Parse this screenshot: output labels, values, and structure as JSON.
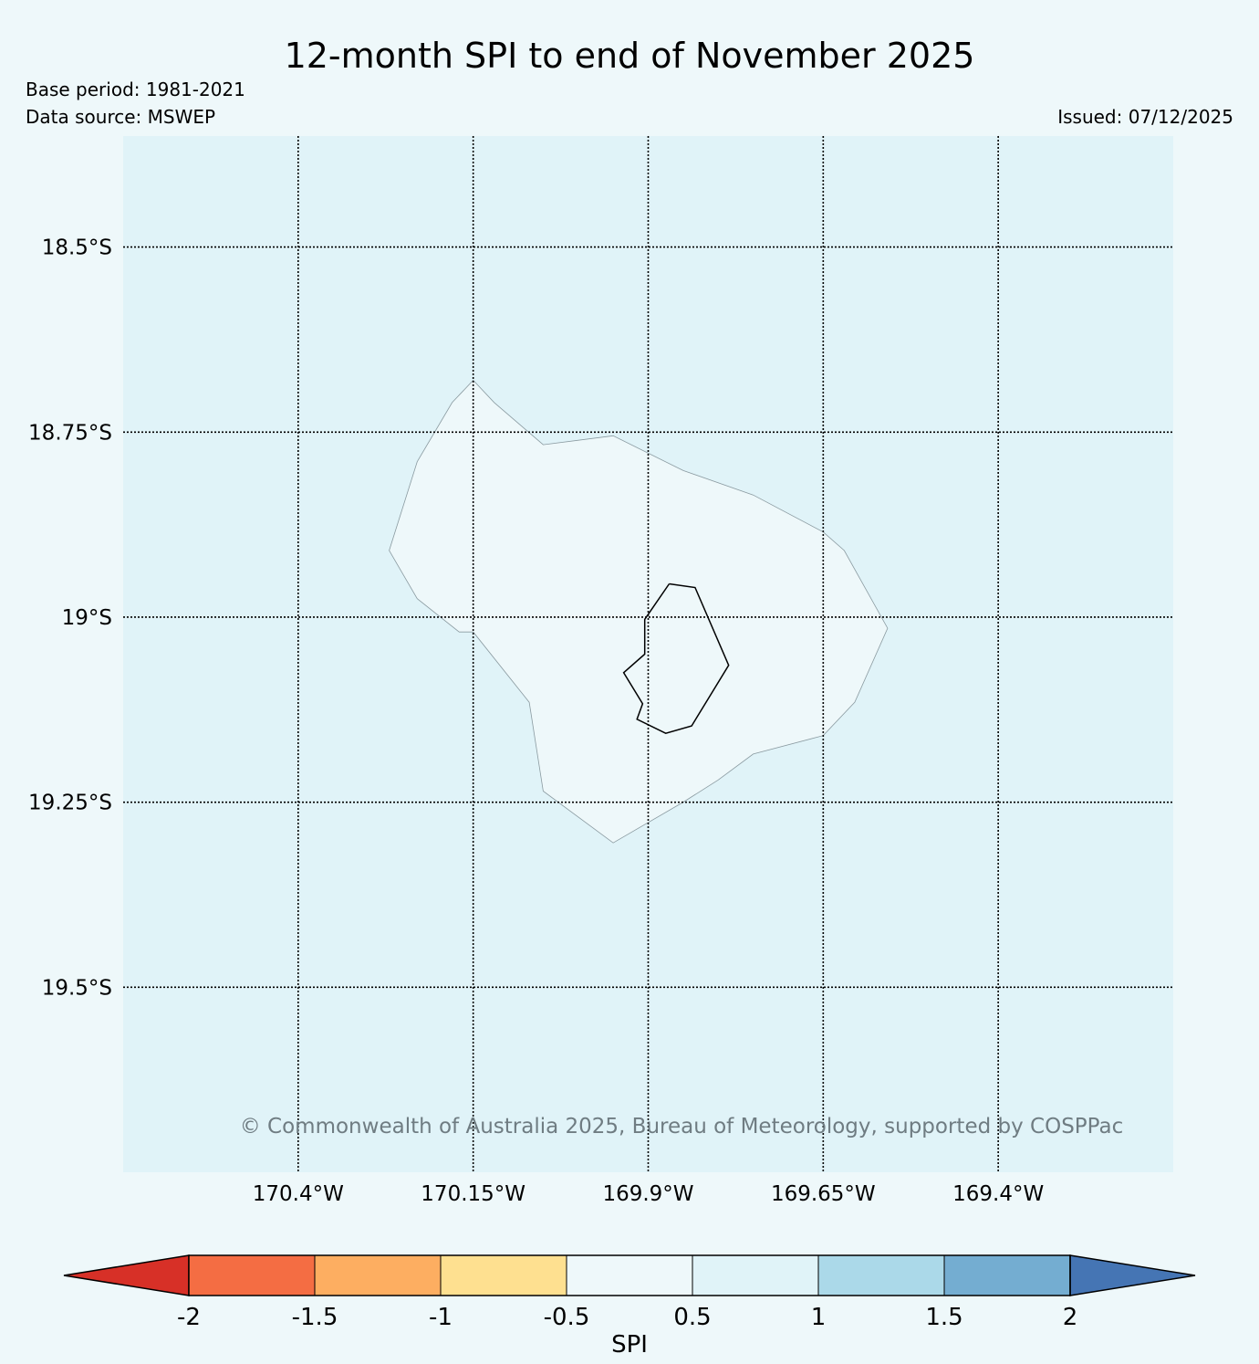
{
  "header": {
    "title": "12-month SPI to end of November 2025",
    "base_period": "Base period: 1981-2021",
    "data_source": "Data source: MSWEP",
    "issued": "Issued: 07/12/2025"
  },
  "map": {
    "extent": {
      "lon": [
        -170.65,
        -169.15
      ],
      "lat": [
        -18.35,
        -19.75
      ]
    },
    "background_color": "#e0f3f8",
    "land_fill": "#eef8fa",
    "lat_gridlines": [
      {
        "value": -18.5,
        "label": "18.5°S"
      },
      {
        "value": -18.75,
        "label": "18.75°S"
      },
      {
        "value": -19.0,
        "label": "19°S"
      },
      {
        "value": -19.25,
        "label": "19.25°S"
      },
      {
        "value": -19.5,
        "label": "19.5°S"
      }
    ],
    "lon_gridlines": [
      {
        "value": -170.4,
        "label": "170.4°W"
      },
      {
        "value": -170.15,
        "label": "170.15°W"
      },
      {
        "value": -169.9,
        "label": "169.9°W"
      },
      {
        "value": -169.65,
        "label": "169.65°W"
      },
      {
        "value": -169.4,
        "label": "169.4°W"
      }
    ],
    "spi_region_outline": [
      [
        -170.15,
        -18.68
      ],
      [
        -170.12,
        -18.71
      ],
      [
        -170.05,
        -18.767
      ],
      [
        -169.95,
        -18.755
      ],
      [
        -169.85,
        -18.802
      ],
      [
        -169.75,
        -18.835
      ],
      [
        -169.65,
        -18.885
      ],
      [
        -169.62,
        -18.91
      ],
      [
        -169.558,
        -19.015
      ],
      [
        -169.605,
        -19.115
      ],
      [
        -169.65,
        -19.16
      ],
      [
        -169.75,
        -19.185
      ],
      [
        -169.8,
        -19.22
      ],
      [
        -169.85,
        -19.25
      ],
      [
        -169.95,
        -19.305
      ],
      [
        -170.05,
        -19.235
      ],
      [
        -170.07,
        -19.115
      ],
      [
        -170.15,
        -19.02
      ],
      [
        -170.17,
        -19.02
      ],
      [
        -170.23,
        -18.975
      ],
      [
        -170.27,
        -18.91
      ],
      [
        -170.23,
        -18.79
      ],
      [
        -170.18,
        -18.71
      ],
      [
        -170.15,
        -18.68
      ]
    ],
    "coastline": [
      [
        -169.87,
        -18.955
      ],
      [
        -169.833,
        -18.96
      ],
      [
        -169.785,
        -19.065
      ],
      [
        -169.838,
        -19.147
      ],
      [
        -169.875,
        -19.157
      ],
      [
        -169.916,
        -19.138
      ],
      [
        -169.908,
        -19.117
      ],
      [
        -169.935,
        -19.075
      ],
      [
        -169.905,
        -19.05
      ],
      [
        -169.905,
        -19.003
      ],
      [
        -169.87,
        -18.955
      ]
    ],
    "copyright": "© Commonwealth of Australia 2025, Bureau of Meteorology, supported by COSPPac"
  },
  "colorbar": {
    "label": "SPI",
    "ticks": [
      "-2",
      "-1.5",
      "-1",
      "-0.5",
      "0.5",
      "1",
      "1.5",
      "2"
    ],
    "segment_colors": [
      "#f46d43",
      "#fdae61",
      "#fee090",
      "#eef8fa",
      "#e0f3f8",
      "#abd9e9",
      "#74add1"
    ],
    "under_color": "#d73027",
    "over_color": "#4575b4"
  }
}
